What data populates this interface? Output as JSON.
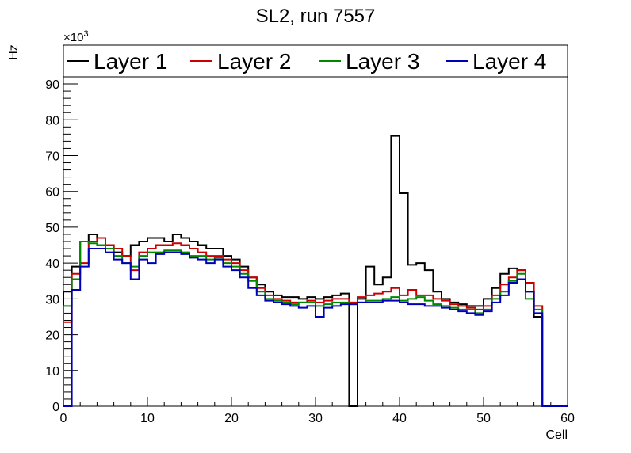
{
  "chart_data": {
    "type": "line",
    "title": "SL2, run 7557",
    "xlabel": "Cell",
    "ylabel": "Hz",
    "yexponent": "×10",
    "yexponent_power": "3",
    "xlim": [
      0,
      60
    ],
    "ylim": [
      0,
      92
    ],
    "xticks": [
      0,
      10,
      20,
      30,
      40,
      50,
      60
    ],
    "yticks": [
      0,
      10,
      20,
      30,
      40,
      50,
      60,
      70,
      80,
      90
    ],
    "legend_position": "top",
    "x": [
      0,
      1,
      2,
      3,
      4,
      5,
      6,
      7,
      8,
      9,
      10,
      11,
      12,
      13,
      14,
      15,
      16,
      17,
      18,
      19,
      20,
      21,
      22,
      23,
      24,
      25,
      26,
      27,
      28,
      29,
      30,
      31,
      32,
      33,
      34,
      35,
      36,
      37,
      38,
      39,
      40,
      41,
      42,
      43,
      44,
      45,
      46,
      47,
      48,
      49,
      50,
      51,
      52,
      53,
      54,
      55,
      56,
      57,
      58,
      59
    ],
    "series": [
      {
        "name": "Layer 1",
        "color": "#000000",
        "values": [
          32,
          39,
          46,
          48,
          47,
          45,
          43,
          42,
          45,
          46,
          47,
          47,
          46,
          48,
          47,
          46,
          45,
          44,
          44,
          42,
          41,
          39,
          36,
          34,
          32,
          31,
          30.5,
          30.5,
          30,
          30.5,
          30,
          30.5,
          31,
          31.5,
          0,
          30,
          39,
          34,
          36,
          75.5,
          59.5,
          39.5,
          40,
          38,
          32,
          30,
          29,
          28.5,
          28,
          28,
          30,
          33,
          37,
          38.5,
          38,
          32,
          25,
          0,
          0,
          0
        ]
      },
      {
        "name": "Layer 2",
        "color": "#cc0000",
        "values": [
          23.5,
          37,
          40,
          46,
          47,
          45,
          44,
          42,
          38,
          43,
          44,
          45,
          45,
          45.5,
          45,
          44,
          43,
          42,
          42,
          41,
          40,
          38,
          36,
          33,
          31,
          30,
          29.5,
          29,
          29,
          29.5,
          29,
          29.5,
          30,
          30,
          29,
          30.5,
          31,
          31.5,
          32,
          33,
          31,
          32.5,
          31,
          31,
          30,
          29.5,
          28.5,
          28,
          27.5,
          27,
          28,
          31,
          34,
          36,
          38,
          34.5,
          28,
          0,
          0,
          0
        ]
      },
      {
        "name": "Layer 3",
        "color": "#008800",
        "values": [
          28,
          35.5,
          46,
          45.5,
          45,
          44,
          42,
          40,
          39,
          42,
          43,
          43,
          43.5,
          43.5,
          43,
          42,
          42,
          41,
          41.5,
          40,
          39,
          37,
          35,
          32,
          30,
          29.5,
          29,
          28.5,
          29,
          29,
          28,
          28.5,
          29,
          29,
          28.5,
          29,
          29.5,
          29.5,
          30,
          30.5,
          29.5,
          30,
          30.5,
          29.5,
          28.5,
          28,
          27.5,
          27,
          27,
          26,
          27,
          30,
          32,
          35,
          37,
          30,
          27,
          0,
          0,
          0
        ]
      },
      {
        "name": "Layer 4",
        "color": "#0000bb",
        "values": [
          0,
          32.5,
          39,
          44,
          44,
          43,
          41,
          40,
          35.5,
          41,
          40,
          42.5,
          43,
          43,
          42.5,
          41.5,
          41,
          40,
          41,
          39,
          38,
          36,
          33,
          31,
          29.5,
          29,
          28.5,
          28,
          27.5,
          28,
          25,
          27.5,
          28,
          28.5,
          28.5,
          29,
          29,
          29,
          29.5,
          29.5,
          29,
          28.5,
          28.5,
          28,
          28,
          27.5,
          27,
          26.5,
          26,
          25.5,
          26.5,
          29,
          31,
          34.5,
          35.5,
          32,
          26,
          0,
          0,
          0
        ]
      }
    ]
  }
}
